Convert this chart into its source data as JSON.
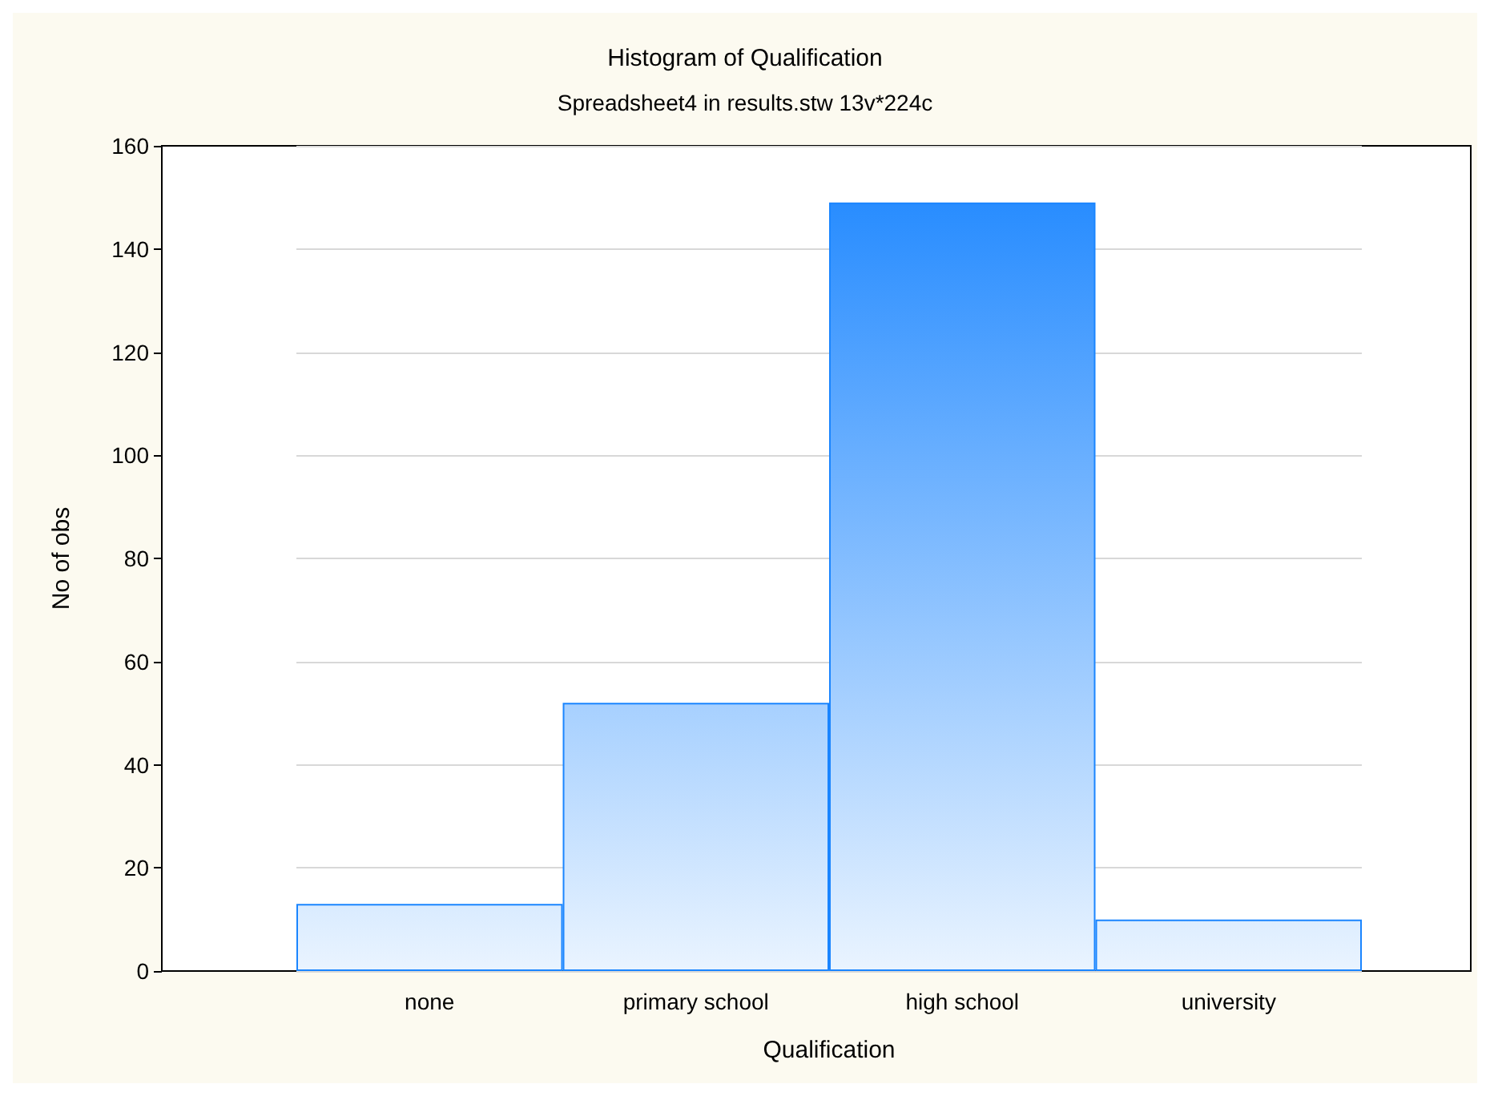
{
  "chart_data": {
    "type": "bar",
    "title": "Histogram of Qualification",
    "subtitle": "Spreadsheet4 in results.stw 13v*224c",
    "xlabel": "Qualification",
    "ylabel": "No of obs",
    "categories": [
      "none",
      "primary school",
      "high school",
      "university"
    ],
    "values": [
      13,
      52,
      149,
      10
    ],
    "color": "#1a85ff",
    "ylim": [
      0,
      160
    ],
    "yticks": [
      0,
      20,
      40,
      60,
      80,
      100,
      120,
      140,
      160
    ],
    "grid": "y"
  }
}
